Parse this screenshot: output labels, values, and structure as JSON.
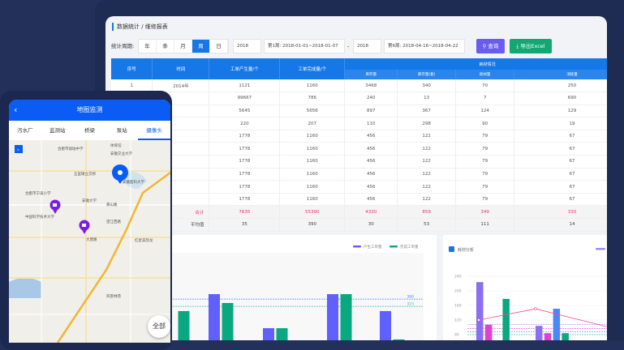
{
  "breadcrumb": "数据统计 / 维修报表",
  "filter": {
    "label": "统计周期:",
    "periods": [
      "年",
      "季",
      "月",
      "周",
      "日"
    ],
    "active": 3,
    "start_year": "2018",
    "start_week": "第1周: 2018-01-01~2018-01-07",
    "dash": "-",
    "end_year": "2018",
    "end_week": "第6周: 2018-04-16~2018-04-22",
    "query": "查询",
    "export": "导出Excel"
  },
  "table": {
    "headers": [
      "序号",
      "时间",
      "工单产生量/个",
      "工单完成量/个"
    ],
    "group_header": "耗材情况",
    "sub_headers": [
      "库存量",
      "库存量(套)",
      "耗材量",
      "消耗量"
    ],
    "rows": [
      [
        "1",
        "2014年",
        "1121",
        "1160",
        "3468",
        "340",
        "70",
        "250"
      ],
      [
        "",
        "",
        "99667",
        "786",
        "240",
        "13",
        "7",
        "690"
      ],
      [
        "",
        "",
        "5645",
        "5656",
        "897",
        "367",
        "124",
        "129"
      ],
      [
        "",
        "",
        "220",
        "207",
        "110",
        "298",
        "90",
        "19"
      ],
      [
        "",
        "",
        "1778",
        "1160",
        "456",
        "122",
        "79",
        "67"
      ],
      [
        "",
        "",
        "1778",
        "1160",
        "456",
        "122",
        "79",
        "67"
      ],
      [
        "",
        "",
        "1778",
        "1160",
        "456",
        "122",
        "79",
        "67"
      ],
      [
        "",
        "",
        "1778",
        "1160",
        "456",
        "122",
        "79",
        "67"
      ],
      [
        "",
        "",
        "1778",
        "1160",
        "456",
        "122",
        "79",
        "67"
      ],
      [
        "",
        "",
        "1778",
        "1160",
        "456",
        "122",
        "79",
        "67"
      ]
    ],
    "sum": [
      "",
      "合计",
      "7635",
      "55390",
      "4330",
      "859",
      "349",
      "330"
    ],
    "avg": [
      "",
      "平均值",
      "35",
      "390",
      "30",
      "53",
      "111",
      "14"
    ]
  },
  "chart_data": [
    {
      "type": "bar",
      "legend": [
        "产生工单量",
        "完成工单量"
      ],
      "colors": [
        "#6060ff",
        "#0aa880"
      ],
      "ylim": [
        0,
        450
      ],
      "series": [
        {
          "name": "产生工单量",
          "values": [
            null,
            385,
            212,
            385,
            299
          ]
        },
        {
          "name": "完成工单量",
          "values": [
            299,
            340,
            212,
            385,
            155
          ]
        }
      ],
      "markers": [
        {
          "value": 360,
          "label": "360",
          "color": "#4a8cf0"
        },
        {
          "value": 323,
          "label": "323",
          "color": "#3cc0b0"
        }
      ]
    },
    {
      "type": "bar",
      "title": "耗材分析",
      "ylim": [
        0,
        240
      ],
      "yticks": [
        40,
        80,
        120,
        160,
        200,
        240
      ],
      "colors": [
        "#8a6ff0",
        "#e040d0",
        "#4a88f8",
        "#0aa880",
        "#ff9a00"
      ],
      "groups": [
        [
          224,
          107,
          62,
          178,
          null
        ],
        [
          104,
          84,
          151,
          84,
          62
        ]
      ],
      "line": {
        "color": "#f05080",
        "values": [
          120,
          151,
          100
        ]
      },
      "averages": [
        108,
        97,
        88,
        80
      ]
    }
  ],
  "phone": {
    "title": "地图监测",
    "tabs": [
      "污水厂",
      "监测站",
      "桥梁",
      "泵站",
      "摄像头"
    ],
    "active": 4,
    "all_button": "全部",
    "map_labels": [
      "合肥市琥珀中学",
      "体育馆",
      "安徽交业大学",
      "五里墩立交桥",
      "安徽医科大学",
      "合肥市宁溪小学",
      "安徽大学",
      "黄山路",
      "中国科学技术大学",
      "望江西路",
      "大唐路",
      "红星美凯龙",
      "风景林苑"
    ]
  }
}
